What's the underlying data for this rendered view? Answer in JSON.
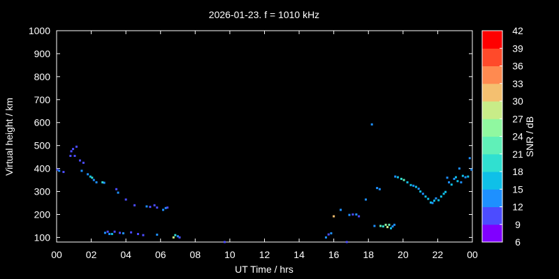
{
  "chart_data": {
    "type": "scatter",
    "title": "2026-01-23. f = 1010 kHz",
    "xlabel": "UT Time / hrs",
    "ylabel": "Virtual height / km",
    "colorbar_label": "SNR / dB",
    "xlim": [
      0,
      24
    ],
    "ylim": [
      80,
      1000
    ],
    "xticks": [
      "00",
      "02",
      "04",
      "06",
      "08",
      "10",
      "12",
      "14",
      "16",
      "18",
      "20",
      "22",
      "00"
    ],
    "yticks": [
      "100",
      "200",
      "300",
      "400",
      "500",
      "600",
      "700",
      "800",
      "900",
      "1000"
    ],
    "colorbar": {
      "ticks": [
        "6",
        "9",
        "12",
        "15",
        "18",
        "21",
        "24",
        "27",
        "30",
        "33",
        "36",
        "39",
        "42"
      ],
      "range": [
        6,
        42
      ],
      "colors": [
        "#8000ff",
        "#4c4cff",
        "#1e90ff",
        "#0fc0e8",
        "#30e0d0",
        "#60f0b8",
        "#90f8a0",
        "#c8ec88",
        "#f4c070",
        "#ff8a50",
        "#ff4a2a",
        "#ff0000"
      ]
    },
    "points": [
      {
        "x": 0.05,
        "y": 395,
        "snr": 10
      },
      {
        "x": 0.15,
        "y": 390,
        "snr": 12
      },
      {
        "x": 0.4,
        "y": 385,
        "snr": 11
      },
      {
        "x": 0.8,
        "y": 455,
        "snr": 10
      },
      {
        "x": 0.85,
        "y": 475,
        "snr": 11
      },
      {
        "x": 0.95,
        "y": 485,
        "snr": 10
      },
      {
        "x": 1.05,
        "y": 455,
        "snr": 11
      },
      {
        "x": 1.15,
        "y": 495,
        "snr": 9
      },
      {
        "x": 1.35,
        "y": 435,
        "snr": 11
      },
      {
        "x": 1.45,
        "y": 390,
        "snr": 12
      },
      {
        "x": 1.55,
        "y": 425,
        "snr": 11
      },
      {
        "x": 1.8,
        "y": 375,
        "snr": 12
      },
      {
        "x": 1.95,
        "y": 365,
        "snr": 16
      },
      {
        "x": 2.05,
        "y": 360,
        "snr": 20
      },
      {
        "x": 2.15,
        "y": 350,
        "snr": 14
      },
      {
        "x": 2.3,
        "y": 340,
        "snr": 13
      },
      {
        "x": 2.65,
        "y": 340,
        "snr": 20
      },
      {
        "x": 2.75,
        "y": 338,
        "snr": 14
      },
      {
        "x": 2.8,
        "y": 120,
        "snr": 12
      },
      {
        "x": 2.95,
        "y": 125,
        "snr": 11
      },
      {
        "x": 3.05,
        "y": 115,
        "snr": 14
      },
      {
        "x": 3.2,
        "y": 115,
        "snr": 15
      },
      {
        "x": 3.35,
        "y": 125,
        "snr": 11
      },
      {
        "x": 3.45,
        "y": 310,
        "snr": 11
      },
      {
        "x": 3.55,
        "y": 295,
        "snr": 12
      },
      {
        "x": 3.65,
        "y": 120,
        "snr": 10
      },
      {
        "x": 3.85,
        "y": 118,
        "snr": 12
      },
      {
        "x": 4.0,
        "y": 265,
        "snr": 11
      },
      {
        "x": 4.3,
        "y": 122,
        "snr": 11
      },
      {
        "x": 4.5,
        "y": 240,
        "snr": 10
      },
      {
        "x": 4.7,
        "y": 115,
        "snr": 10
      },
      {
        "x": 5.0,
        "y": 110,
        "snr": 11
      },
      {
        "x": 5.2,
        "y": 235,
        "snr": 12
      },
      {
        "x": 5.4,
        "y": 233,
        "snr": 11
      },
      {
        "x": 5.65,
        "y": 240,
        "snr": 10
      },
      {
        "x": 5.8,
        "y": 230,
        "snr": 11
      },
      {
        "x": 5.8,
        "y": 112,
        "snr": 12
      },
      {
        "x": 6.15,
        "y": 220,
        "snr": 13
      },
      {
        "x": 6.3,
        "y": 228,
        "snr": 12
      },
      {
        "x": 6.4,
        "y": 230,
        "snr": 11
      },
      {
        "x": 6.75,
        "y": 100,
        "snr": 27
      },
      {
        "x": 6.85,
        "y": 110,
        "snr": 18
      },
      {
        "x": 7.0,
        "y": 105,
        "snr": 12
      },
      {
        "x": 7.1,
        "y": 100,
        "snr": 11
      },
      {
        "x": 9.7,
        "y": 78,
        "snr": 10
      },
      {
        "x": 15.55,
        "y": 100,
        "snr": 12
      },
      {
        "x": 15.7,
        "y": 113,
        "snr": 11
      },
      {
        "x": 15.85,
        "y": 118,
        "snr": 12
      },
      {
        "x": 16.0,
        "y": 192,
        "snr": 30
      },
      {
        "x": 16.4,
        "y": 220,
        "snr": 13
      },
      {
        "x": 16.75,
        "y": 80,
        "snr": 11
      },
      {
        "x": 16.9,
        "y": 198,
        "snr": 12
      },
      {
        "x": 17.1,
        "y": 200,
        "snr": 11
      },
      {
        "x": 17.3,
        "y": 200,
        "snr": 12
      },
      {
        "x": 17.45,
        "y": 192,
        "snr": 11
      },
      {
        "x": 17.85,
        "y": 265,
        "snr": 14
      },
      {
        "x": 18.2,
        "y": 592,
        "snr": 14
      },
      {
        "x": 18.35,
        "y": 150,
        "snr": 13
      },
      {
        "x": 18.5,
        "y": 315,
        "snr": 14
      },
      {
        "x": 18.65,
        "y": 310,
        "snr": 13
      },
      {
        "x": 18.7,
        "y": 150,
        "snr": 22
      },
      {
        "x": 18.85,
        "y": 148,
        "snr": 20
      },
      {
        "x": 19.0,
        "y": 155,
        "snr": 24
      },
      {
        "x": 19.1,
        "y": 145,
        "snr": 27
      },
      {
        "x": 19.2,
        "y": 155,
        "snr": 21
      },
      {
        "x": 19.3,
        "y": 140,
        "snr": 16
      },
      {
        "x": 19.4,
        "y": 148,
        "snr": 14
      },
      {
        "x": 19.5,
        "y": 155,
        "snr": 12
      },
      {
        "x": 19.55,
        "y": 365,
        "snr": 14
      },
      {
        "x": 19.7,
        "y": 362,
        "snr": 16
      },
      {
        "x": 19.9,
        "y": 355,
        "snr": 20
      },
      {
        "x": 20.05,
        "y": 350,
        "snr": 22
      },
      {
        "x": 20.25,
        "y": 340,
        "snr": 17
      },
      {
        "x": 20.45,
        "y": 328,
        "snr": 15
      },
      {
        "x": 20.6,
        "y": 325,
        "snr": 14
      },
      {
        "x": 20.75,
        "y": 320,
        "snr": 15
      },
      {
        "x": 20.9,
        "y": 312,
        "snr": 14
      },
      {
        "x": 21.0,
        "y": 300,
        "snr": 15
      },
      {
        "x": 21.15,
        "y": 290,
        "snr": 14
      },
      {
        "x": 21.3,
        "y": 278,
        "snr": 16
      },
      {
        "x": 21.45,
        "y": 268,
        "snr": 15
      },
      {
        "x": 21.6,
        "y": 252,
        "snr": 16
      },
      {
        "x": 21.7,
        "y": 250,
        "snr": 14
      },
      {
        "x": 21.8,
        "y": 260,
        "snr": 15
      },
      {
        "x": 21.9,
        "y": 270,
        "snr": 14
      },
      {
        "x": 22.05,
        "y": 262,
        "snr": 16
      },
      {
        "x": 22.2,
        "y": 278,
        "snr": 15
      },
      {
        "x": 22.35,
        "y": 290,
        "snr": 17
      },
      {
        "x": 22.45,
        "y": 298,
        "snr": 16
      },
      {
        "x": 22.55,
        "y": 360,
        "snr": 13
      },
      {
        "x": 22.65,
        "y": 340,
        "snr": 14
      },
      {
        "x": 22.8,
        "y": 330,
        "snr": 15
      },
      {
        "x": 22.95,
        "y": 355,
        "snr": 14
      },
      {
        "x": 23.05,
        "y": 362,
        "snr": 16
      },
      {
        "x": 23.15,
        "y": 345,
        "snr": 15
      },
      {
        "x": 23.25,
        "y": 400,
        "snr": 13
      },
      {
        "x": 23.35,
        "y": 340,
        "snr": 14
      },
      {
        "x": 23.45,
        "y": 368,
        "snr": 16
      },
      {
        "x": 23.6,
        "y": 362,
        "snr": 14
      },
      {
        "x": 23.75,
        "y": 365,
        "snr": 15
      },
      {
        "x": 23.85,
        "y": 445,
        "snr": 13
      },
      {
        "x": 23.95,
        "y": 395,
        "snr": 14
      }
    ]
  }
}
